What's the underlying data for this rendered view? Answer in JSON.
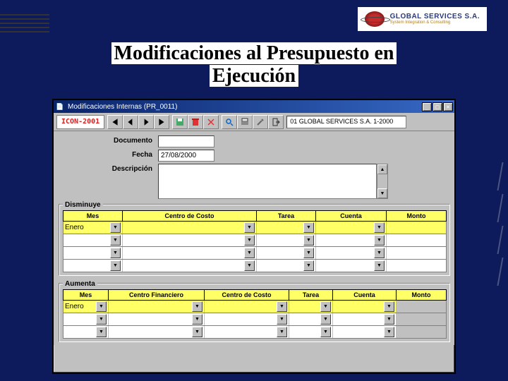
{
  "logo": {
    "line1": "GLOBAL SERVICES S.A.",
    "line2": "System Integration & Consulting"
  },
  "slide": {
    "title_l1": "Modificaciones al Presupuesto en",
    "title_l2": "Ejecución"
  },
  "window": {
    "title": "Modificaciones Internas (PR_0011)",
    "brand": "ICON-2001",
    "status": "01 GLOBAL SERVICES S.A. 1-2000"
  },
  "form": {
    "documento_label": "Documento",
    "documento_value": "",
    "fecha_label": "Fecha",
    "fecha_value": "27/08/2000",
    "descripcion_label": "Descripción",
    "descripcion_value": ""
  },
  "disminuye": {
    "legend": "Disminuye",
    "columns": {
      "mes": "Mes",
      "cc": "Centro de Costo",
      "tarea": "Tarea",
      "cuenta": "Cuenta",
      "monto": "Monto"
    },
    "rows": [
      {
        "mes": "Enero",
        "cc": "",
        "tarea": "",
        "cuenta": "",
        "monto": "",
        "selected": true
      },
      {
        "mes": "",
        "cc": "",
        "tarea": "",
        "cuenta": "",
        "monto": ""
      },
      {
        "mes": "",
        "cc": "",
        "tarea": "",
        "cuenta": "",
        "monto": ""
      },
      {
        "mes": "",
        "cc": "",
        "tarea": "",
        "cuenta": "",
        "monto": ""
      }
    ]
  },
  "aumenta": {
    "legend": "Aumenta",
    "columns": {
      "mes": "Mes",
      "cf": "Centro Financiero",
      "cc": "Centro de Costo",
      "tarea": "Tarea",
      "cuenta": "Cuenta",
      "monto": "Monto"
    },
    "rows": [
      {
        "mes": "Enero",
        "cf": "",
        "cc": "",
        "tarea": "",
        "cuenta": "",
        "monto": "",
        "selected": true
      },
      {
        "mes": "",
        "cf": "",
        "cc": "",
        "tarea": "",
        "cuenta": "",
        "monto": ""
      },
      {
        "mes": "",
        "cf": "",
        "cc": "",
        "tarea": "",
        "cuenta": "",
        "monto": ""
      }
    ]
  },
  "colors": {
    "bg": "#0d1b5c",
    "win": "#c0c0c0",
    "highlight": "#ffff66",
    "titlebar_a": "#0a246a",
    "titlebar_b": "#3668c4",
    "brand_red": "#d81e1e"
  }
}
